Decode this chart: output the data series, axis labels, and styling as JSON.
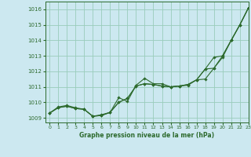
{
  "title": "Graphe pression niveau de la mer (hPa)",
  "background_color": "#cce8f0",
  "grid_color": "#99ccbb",
  "line_color": "#2d6a2d",
  "xlim": [
    -0.5,
    23
  ],
  "ylim": [
    1008.7,
    1016.5
  ],
  "yticks": [
    1009,
    1010,
    1011,
    1012,
    1013,
    1014,
    1015,
    1016
  ],
  "xticks": [
    0,
    1,
    2,
    3,
    4,
    5,
    6,
    7,
    8,
    9,
    10,
    11,
    12,
    13,
    14,
    15,
    16,
    17,
    18,
    19,
    20,
    21,
    22,
    23
  ],
  "series1_x": [
    0,
    1,
    2,
    3,
    4,
    5,
    6,
    7,
    8,
    9,
    10,
    11,
    12,
    13,
    14,
    15,
    16,
    17,
    18,
    19,
    20,
    21,
    22,
    23
  ],
  "series1_y": [
    1009.3,
    1009.7,
    1009.8,
    1009.65,
    1009.55,
    1009.1,
    1009.2,
    1009.35,
    1010.3,
    1010.05,
    1011.1,
    1011.55,
    1011.2,
    1011.2,
    1011.0,
    1011.05,
    1011.1,
    1011.45,
    1011.5,
    1012.2,
    1013.0,
    1014.0,
    1015.0,
    1016.1
  ],
  "series2_x": [
    0,
    1,
    2,
    3,
    4,
    5,
    6,
    7,
    8,
    9,
    10,
    11,
    12,
    13,
    14,
    15,
    16,
    17,
    18,
    19,
    20,
    21,
    22,
    23
  ],
  "series2_y": [
    1009.3,
    1009.65,
    1009.75,
    1009.6,
    1009.55,
    1009.1,
    1009.15,
    1009.35,
    1010.0,
    1010.25,
    1011.05,
    1011.2,
    1011.15,
    1011.05,
    1011.0,
    1011.05,
    1011.15,
    1011.45,
    1012.15,
    1012.2,
    1012.9,
    1014.0,
    1015.0,
    1016.1
  ],
  "series3_x": [
    0,
    1,
    2,
    3,
    4,
    5,
    6,
    7,
    8,
    9,
    10,
    11,
    12,
    13,
    14,
    15,
    16,
    17,
    18,
    19,
    20,
    21,
    22,
    23
  ],
  "series3_y": [
    1009.3,
    1009.65,
    1009.75,
    1009.6,
    1009.55,
    1009.1,
    1009.15,
    1009.35,
    1010.0,
    1010.25,
    1011.05,
    1011.2,
    1011.15,
    1011.05,
    1011.0,
    1011.05,
    1011.15,
    1011.45,
    1012.15,
    1012.9,
    1013.0,
    1014.0,
    1015.0,
    1016.1
  ]
}
